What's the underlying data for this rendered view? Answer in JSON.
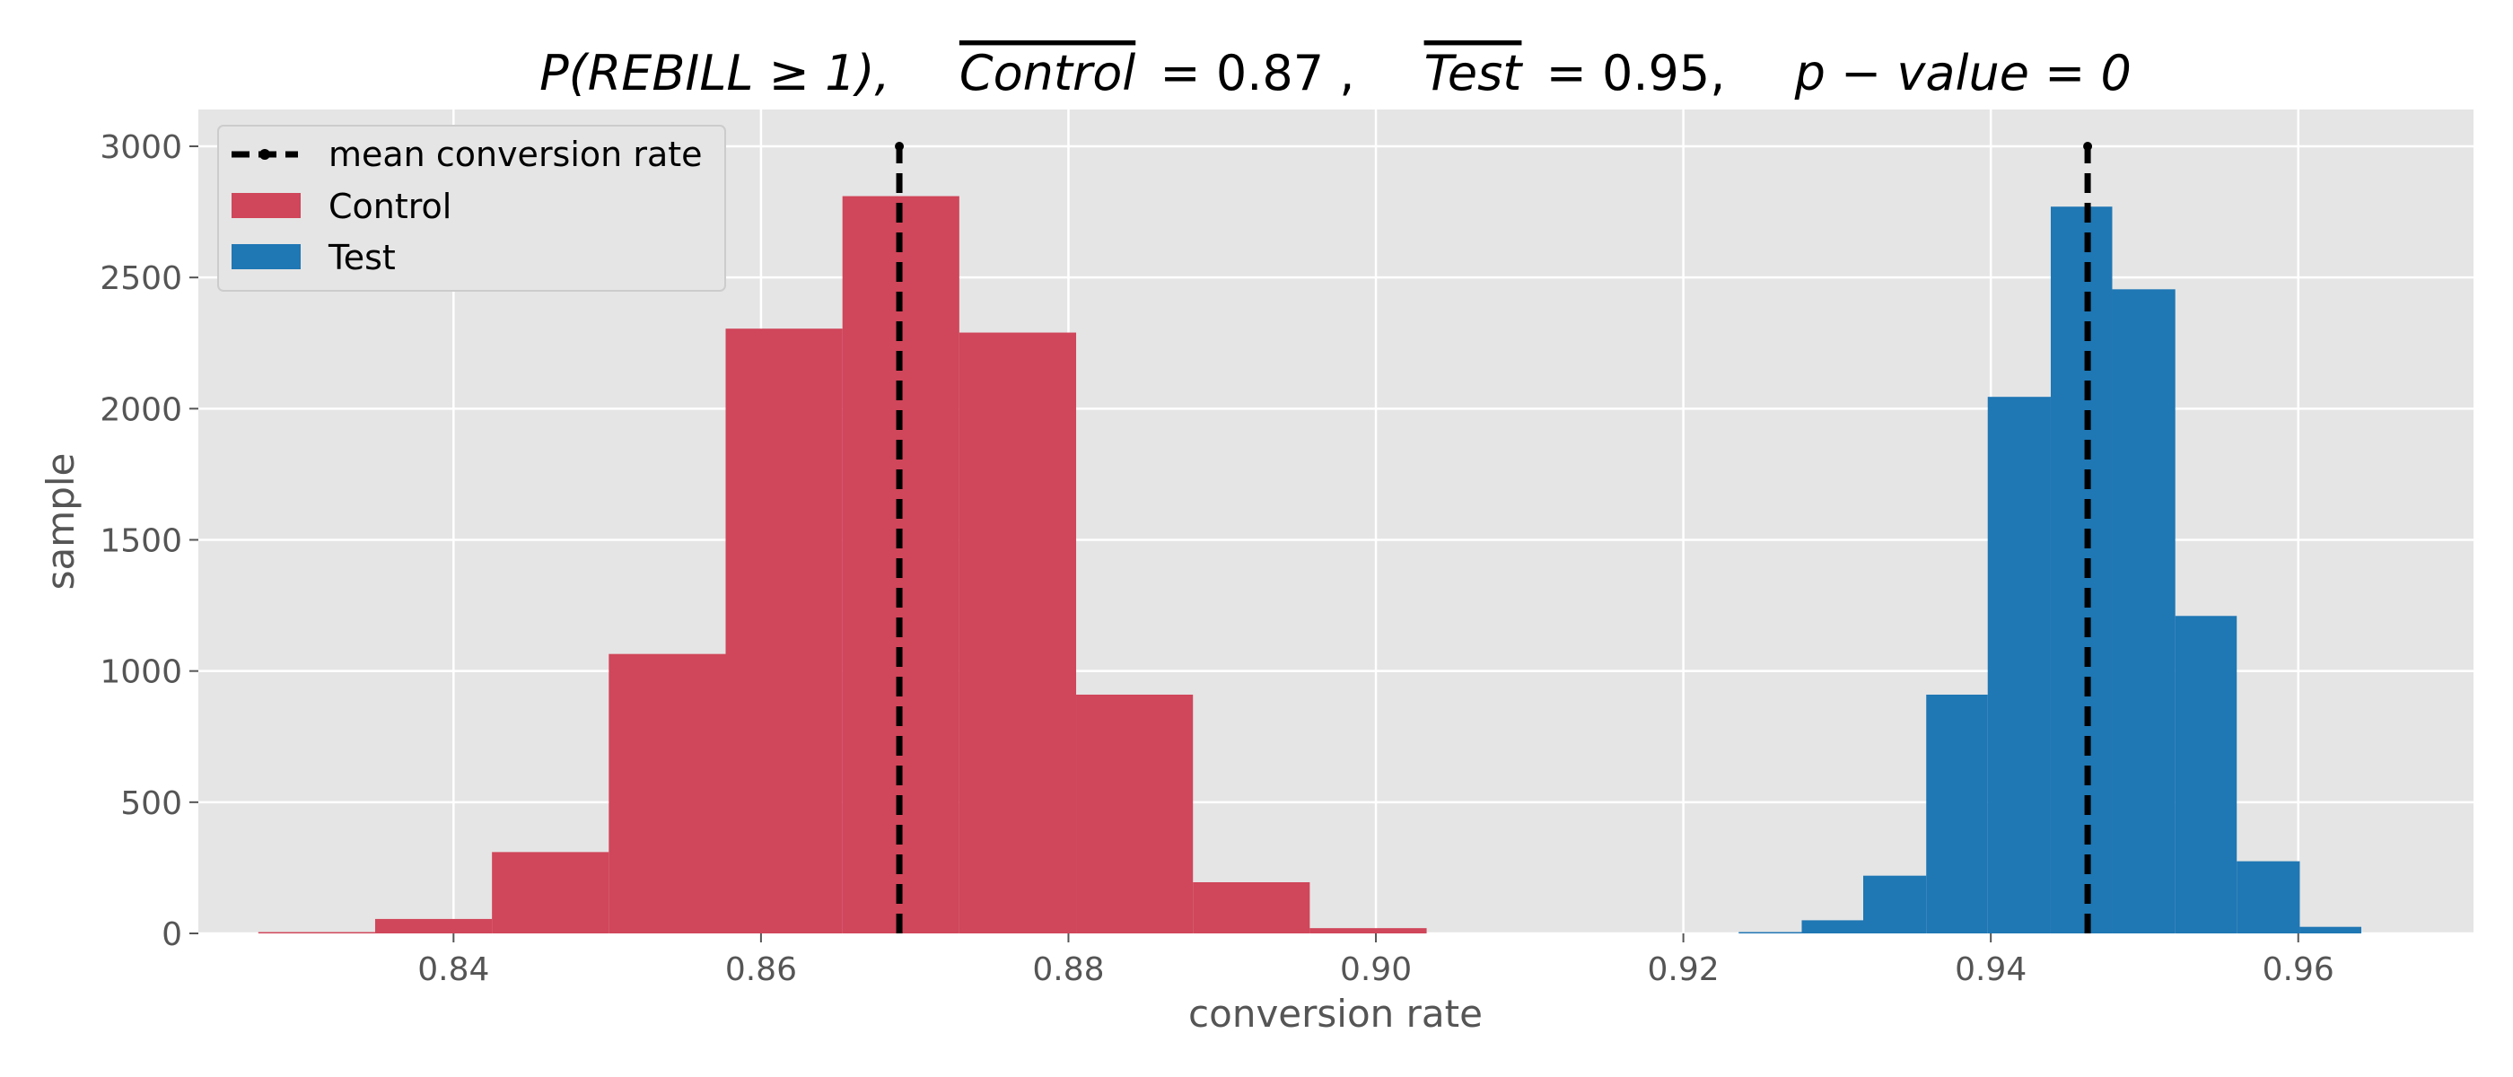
{
  "chart_data": {
    "type": "bar",
    "title": {
      "p_expr": "P(REBILL ≥ 1),",
      "control_name": "Control",
      "control_eq": "= 0.87 ,",
      "test_name": "Test",
      "test_eq": "= 0.95,",
      "pvalue_text": "p − value = 0"
    },
    "xlabel": "conversion rate",
    "ylabel": "sample",
    "xlim": [
      0.8234,
      0.9714
    ],
    "ylim": [
      0,
      3000
    ],
    "xticks": [
      0.84,
      0.86,
      0.88,
      0.9,
      0.92,
      0.94,
      0.96
    ],
    "xtick_labels": [
      "0.84",
      "0.86",
      "0.88",
      "0.90",
      "0.92",
      "0.94",
      "0.96"
    ],
    "yticks": [
      0,
      500,
      1000,
      1500,
      2000,
      2500,
      3000
    ],
    "ytick_labels": [
      "0",
      "500",
      "1000",
      "1500",
      "2000",
      "2500",
      "3000"
    ],
    "grid": true,
    "legend_position": "top-left",
    "series": [
      {
        "name": "Control",
        "color": "#d0465a",
        "bin_edges": [
          0.8273,
          0.8349,
          0.8425,
          0.8501,
          0.8577,
          0.8653,
          0.8729,
          0.8805,
          0.8881,
          0.8957,
          0.9033
        ],
        "counts": [
          5,
          55,
          310,
          1065,
          2305,
          2810,
          2290,
          910,
          195,
          20
        ]
      },
      {
        "name": "Test",
        "color": "#1f77b4",
        "bin_edges": [
          0.9236,
          0.9277,
          0.9317,
          0.9358,
          0.9398,
          0.9439,
          0.9479,
          0.952,
          0.956,
          0.9601,
          0.9641
        ],
        "counts": [
          5,
          50,
          220,
          910,
          2045,
          2770,
          2455,
          1210,
          275,
          25
        ]
      }
    ],
    "mean_lines": {
      "name": "mean conversion rate",
      "color": "#000000",
      "x": [
        0.869,
        0.9463
      ],
      "y_top": 3000
    }
  }
}
